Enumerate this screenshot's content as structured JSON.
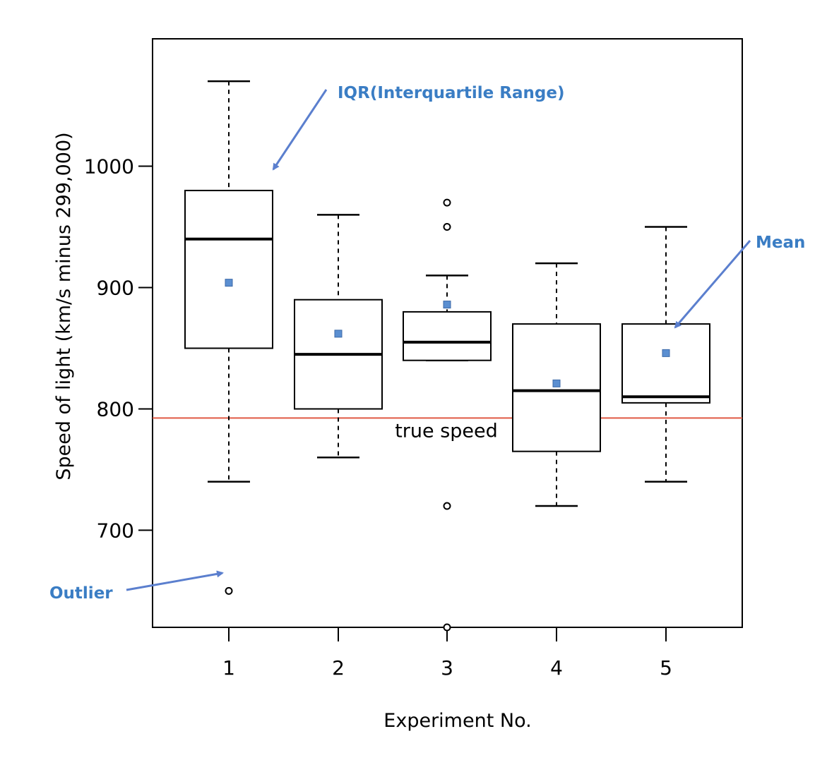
{
  "chart_data": {
    "type": "box",
    "xlabel": "Experiment No.",
    "ylabel": "Speed of light (km/s minus 299,000)",
    "ylim": [
      620,
      1105
    ],
    "yticks": [
      700,
      800,
      900,
      1000
    ],
    "categories": [
      "1",
      "2",
      "3",
      "4",
      "5"
    ],
    "boxes": [
      {
        "category": "1",
        "whisker_low": 740,
        "q1": 850,
        "median": 940,
        "q3": 980,
        "whisker_high": 1070,
        "mean": 904,
        "outliers": [
          650
        ]
      },
      {
        "category": "2",
        "whisker_low": 760,
        "q1": 800,
        "median": 845,
        "q3": 890,
        "whisker_high": 960,
        "mean": 862,
        "outliers": []
      },
      {
        "category": "3",
        "whisker_low": 840,
        "q1": 840,
        "median": 855,
        "q3": 880,
        "whisker_high": 910,
        "mean": 886,
        "outliers": [
          970,
          950,
          720,
          620
        ]
      },
      {
        "category": "4",
        "whisker_low": 720,
        "q1": 765,
        "median": 815,
        "q3": 870,
        "whisker_high": 920,
        "mean": 821,
        "outliers": []
      },
      {
        "category": "5",
        "whisker_low": 740,
        "q1": 805,
        "median": 810,
        "q3": 870,
        "whisker_high": 950,
        "mean": 846,
        "outliers": []
      }
    ],
    "reference_line": {
      "value": 792.5,
      "label": "true speed",
      "color": "#e05a44"
    },
    "annotations": [
      {
        "text": "IQR(Interquartile Range)",
        "target": "box 1 upper quartile"
      },
      {
        "text": "Mean",
        "target": "box 5 mean"
      },
      {
        "text": "Outlier",
        "target": "box 1 outlier"
      }
    ],
    "colors": {
      "annotation": "#3a7dc4",
      "arrow": "#5b7fce",
      "mean_marker_fill": "#5b8fd1",
      "mean_marker_stroke": "#3c6aa8"
    },
    "grid": false,
    "legend": "none"
  }
}
